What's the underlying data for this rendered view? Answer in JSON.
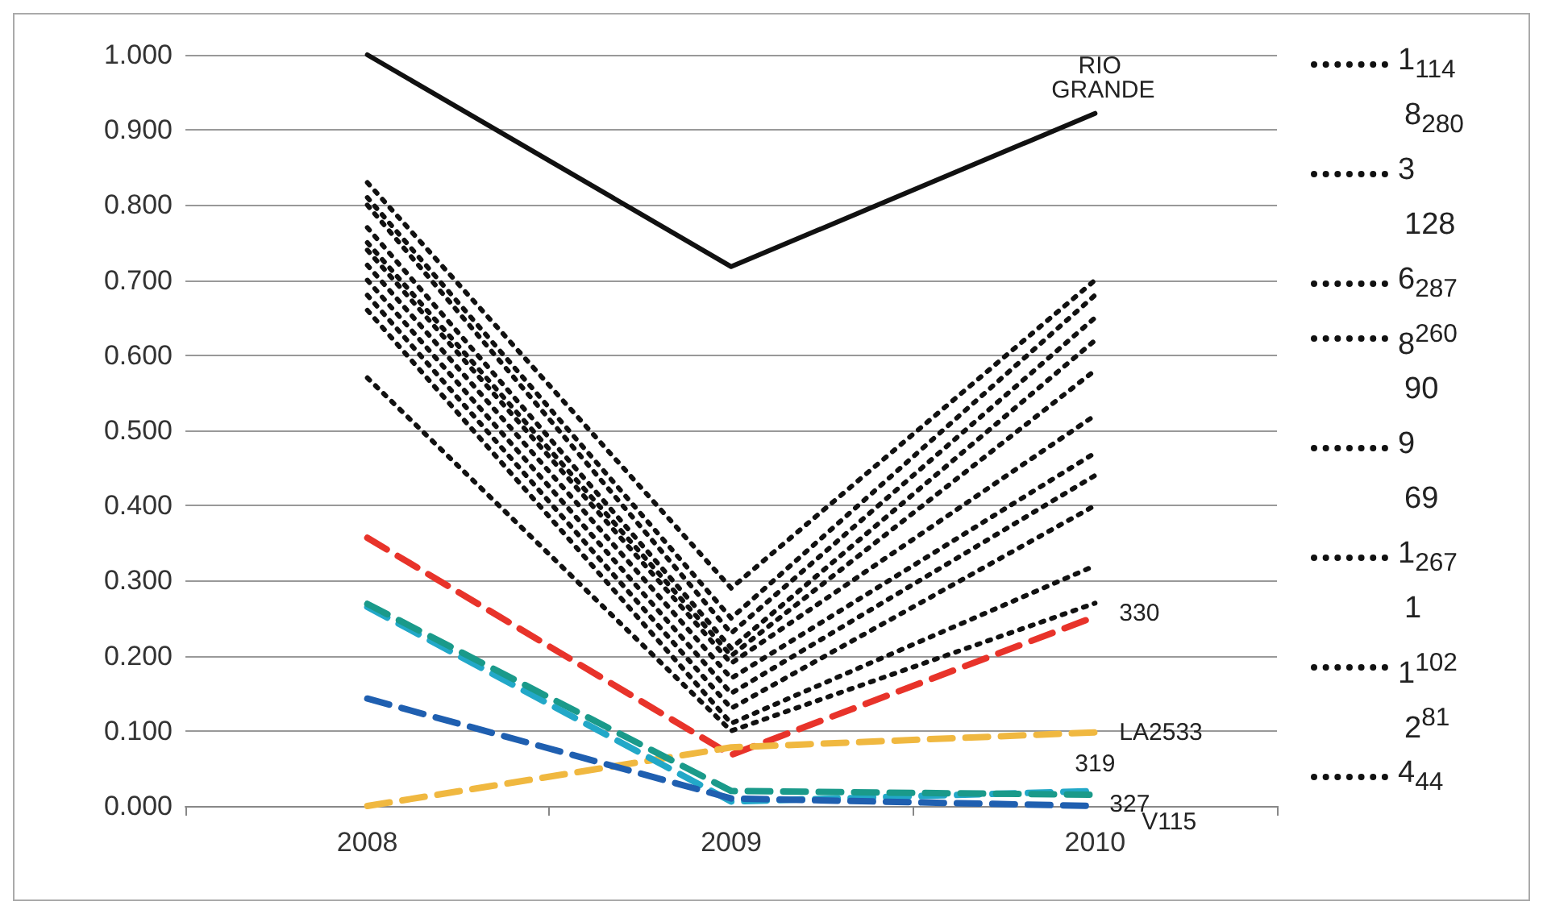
{
  "chart_data": {
    "type": "line",
    "categories": [
      "2008",
      "2009",
      "2010"
    ],
    "ylim": [
      0,
      1
    ],
    "yticks": [
      {
        "value": 0,
        "label": "0.000"
      },
      {
        "value": 0.1,
        "label": "0.100"
      },
      {
        "value": 0.2,
        "label": "0.200"
      },
      {
        "value": 0.3,
        "label": "0.300"
      },
      {
        "value": 0.4,
        "label": "0.400"
      },
      {
        "value": 0.5,
        "label": "0.500"
      },
      {
        "value": 0.6,
        "label": "0.600"
      },
      {
        "value": 0.7,
        "label": "0.700"
      },
      {
        "value": 0.8,
        "label": "0.800"
      },
      {
        "value": 0.9,
        "label": "0.900"
      },
      {
        "value": 1,
        "label": "1.000"
      }
    ],
    "grid": "y",
    "legend": false,
    "marker": "none",
    "series": [
      {
        "color": "#111111",
        "line_style": "dotted",
        "values": [
          0.83,
          0.29,
          0.7
        ]
      },
      {
        "color": "#111111",
        "line_style": "dotted",
        "values": [
          0.81,
          0.25,
          0.68
        ]
      },
      {
        "color": "#111111",
        "line_style": "dotted",
        "values": [
          0.8,
          0.23,
          0.65
        ]
      },
      {
        "color": "#111111",
        "line_style": "dotted",
        "values": [
          0.77,
          0.21,
          0.62
        ]
      },
      {
        "color": "#111111",
        "line_style": "dotted",
        "values": [
          0.75,
          0.2,
          0.58
        ]
      },
      {
        "color": "#111111",
        "line_style": "dotted",
        "values": [
          0.74,
          0.19,
          0.52
        ]
      },
      {
        "color": "#111111",
        "line_style": "dotted",
        "values": [
          0.72,
          0.17,
          0.47
        ]
      },
      {
        "color": "#111111",
        "line_style": "dotted",
        "values": [
          0.7,
          0.15,
          0.44
        ]
      },
      {
        "color": "#111111",
        "line_style": "dotted",
        "values": [
          0.68,
          0.13,
          0.4
        ]
      },
      {
        "color": "#111111",
        "line_style": "dotted",
        "values": [
          0.66,
          0.11,
          0.32
        ]
      },
      {
        "color": "#111111",
        "line_style": "dotted",
        "values": [
          0.57,
          0.1,
          0.27
        ]
      },
      {
        "name": "RIO GRANDE",
        "color": "#111111",
        "line_style": "solid",
        "values": [
          1.0,
          0.718,
          0.922
        ]
      },
      {
        "name": "330",
        "color": "#e8332a",
        "line_style": "dashed",
        "values": [
          0.357,
          0.068,
          0.252
        ]
      },
      {
        "name": "LA2533",
        "color": "#f0b840",
        "line_style": "dashed",
        "values": [
          0.0,
          0.078,
          0.098
        ]
      },
      {
        "name": "319",
        "color": "#22a8c8",
        "line_style": "dashed",
        "values": [
          0.265,
          0.006,
          0.02
        ]
      },
      {
        "name": "327",
        "color": "#1a9a8a",
        "line_style": "dashed",
        "values": [
          0.269,
          0.02,
          0.015
        ]
      },
      {
        "name": "V115",
        "color": "#1f5fb0",
        "line_style": "dashed",
        "values": [
          0.143,
          0.01,
          0.0
        ]
      }
    ],
    "annotations": [
      "1$_{114}$",
      "8$_{280}$",
      "3",
      "128",
      "6$_{287}$",
      "8$^{260}$",
      "90",
      "9",
      "69",
      "1$_{267}$",
      "1",
      "1$^{102}$",
      "2$^{81}$",
      "4$_{44}$"
    ]
  }
}
